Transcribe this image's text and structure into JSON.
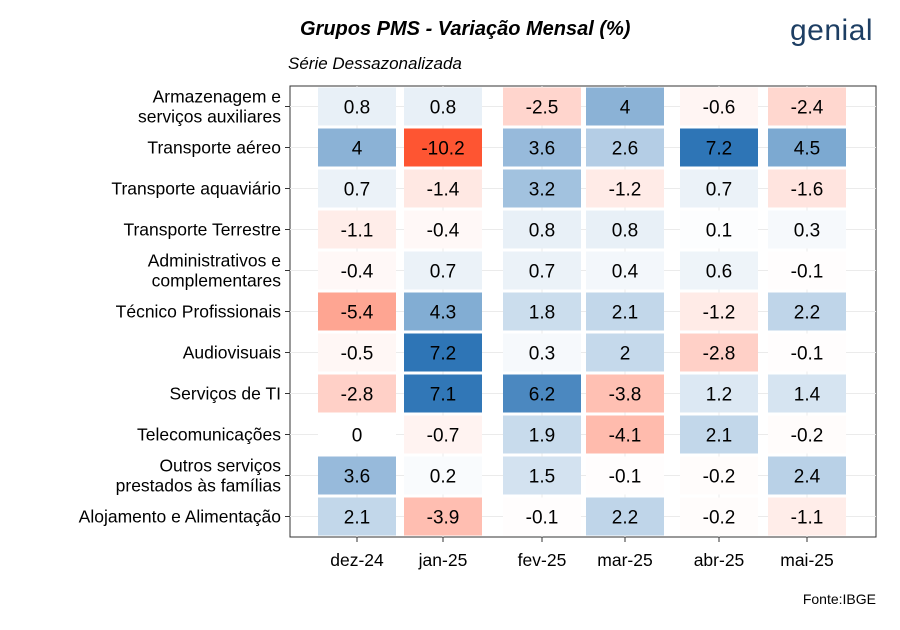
{
  "header": {
    "title": "Grupos PMS - Variação Mensal (%)",
    "subtitle": "Série Dessazonalizada",
    "logo_text": "genial",
    "caption": "Fonte:IBGE"
  },
  "chart_data": {
    "type": "heatmap",
    "title": "Grupos PMS - Variação Mensal (%)",
    "subtitle": "Série Dessazonalizada",
    "xlabel": "",
    "ylabel": "",
    "columns": [
      "dez-24",
      "jan-25",
      "fev-25",
      "mar-25",
      "abr-25",
      "mai-25"
    ],
    "rows": [
      [
        "Armazenagem e",
        "serviços auxiliares"
      ],
      [
        "Transporte aéreo"
      ],
      [
        "Transporte aquaviário"
      ],
      [
        "Transporte Terrestre"
      ],
      [
        "Administrativos e",
        "complementares"
      ],
      [
        "Técnico Profissionais"
      ],
      [
        "Audiovisuais"
      ],
      [
        "Serviços de TI"
      ],
      [
        "Telecomunicações"
      ],
      [
        "Outros serviços",
        "prestados às famílias"
      ],
      [
        "Alojamento e Alimentação"
      ]
    ],
    "values": [
      [
        0.8,
        0.8,
        -2.5,
        4,
        -0.6,
        -2.4
      ],
      [
        4,
        -10.2,
        3.6,
        2.6,
        7.2,
        4.5
      ],
      [
        0.7,
        -1.4,
        3.2,
        -1.2,
        0.7,
        -1.6
      ],
      [
        -1.1,
        -0.4,
        0.8,
        0.8,
        0.1,
        0.3
      ],
      [
        -0.4,
        0.7,
        0.7,
        0.4,
        0.6,
        -0.1
      ],
      [
        -5.4,
        4.3,
        1.8,
        2.1,
        -1.2,
        2.2
      ],
      [
        -0.5,
        7.2,
        0.3,
        2,
        -2.8,
        -0.1
      ],
      [
        -2.8,
        7.1,
        6.2,
        -3.8,
        1.2,
        1.4
      ],
      [
        0,
        -0.7,
        1.9,
        -4.1,
        2.1,
        -0.2
      ],
      [
        3.6,
        0.2,
        1.5,
        -0.1,
        -0.2,
        2.4
      ],
      [
        2.1,
        -3.9,
        -0.1,
        2.2,
        -0.2,
        -1.1
      ]
    ],
    "color_scale": {
      "low": "#fe5532",
      "mid": "#ffffff",
      "high": "#2e75b6",
      "limits": [
        -10.2,
        7.2
      ]
    },
    "grid": true,
    "legend": "none"
  }
}
